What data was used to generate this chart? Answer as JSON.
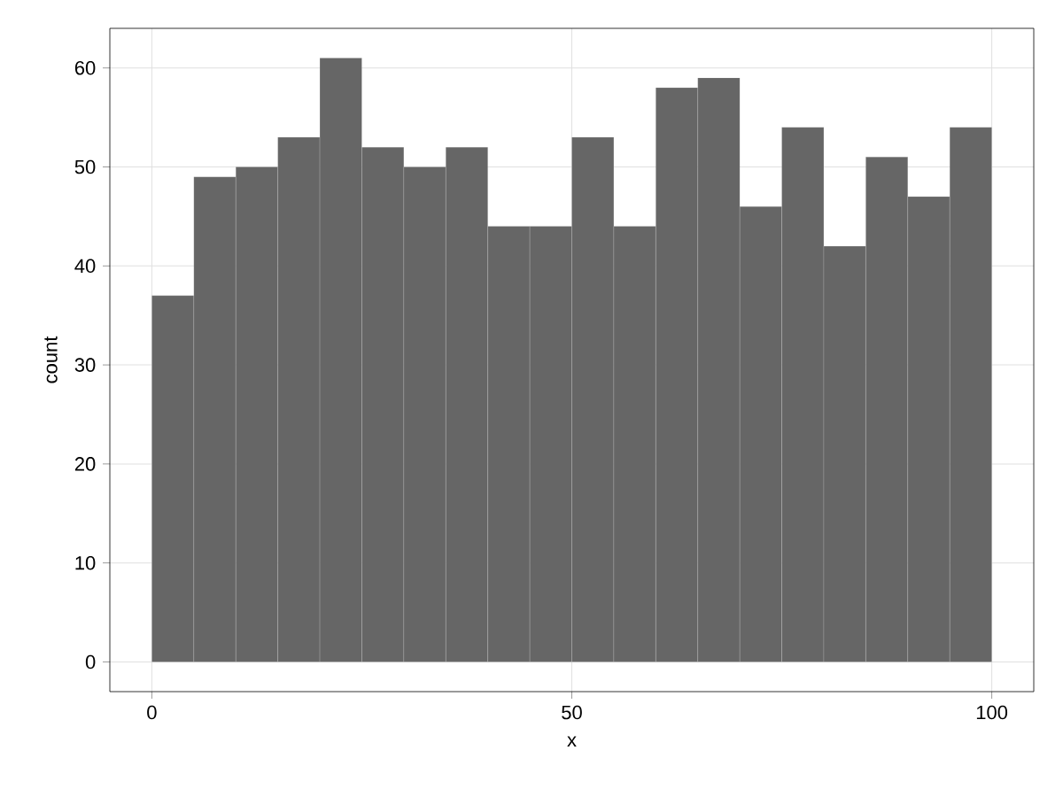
{
  "chart_data": {
    "type": "histogram",
    "xlabel": "x",
    "ylabel": "count",
    "bins": [
      0,
      5,
      10,
      15,
      20,
      25,
      30,
      35,
      40,
      45,
      50,
      55,
      60,
      65,
      70,
      75,
      80,
      85,
      90,
      95,
      100
    ],
    "values": [
      37,
      49,
      50,
      53,
      61,
      52,
      50,
      52,
      44,
      44,
      53,
      44,
      58,
      59,
      46,
      54,
      42,
      51,
      47,
      54
    ],
    "color": "#666666",
    "xlim": [
      -5,
      105
    ],
    "ylim": [
      -3,
      64
    ],
    "xticks": [
      0,
      50,
      100
    ],
    "yticks": [
      0,
      10,
      20,
      30,
      40,
      50,
      60
    ],
    "grid": true
  }
}
